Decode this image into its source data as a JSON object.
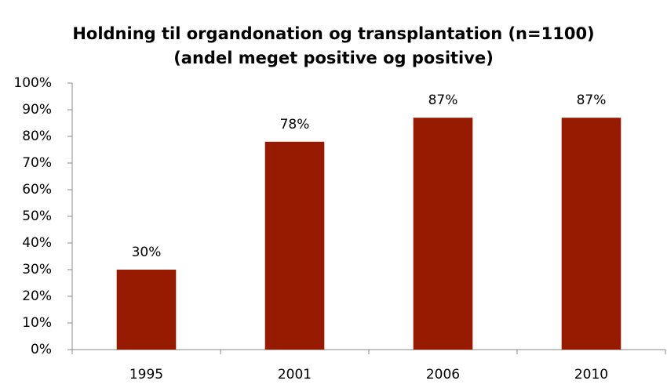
{
  "chart_data": {
    "type": "bar",
    "title": "Holdning til organdonation og transplantation (n=1100)",
    "subtitle": "(andel meget positive og positive)",
    "categories": [
      "1995",
      "2001",
      "2006",
      "2010"
    ],
    "values": [
      30,
      78,
      87,
      87
    ],
    "value_labels": [
      "30%",
      "78%",
      "87%",
      "87%"
    ],
    "color": "#951a00",
    "ylim": [
      0,
      100
    ],
    "yticks": [
      {
        "value": 0,
        "label": "0%"
      },
      {
        "value": 10,
        "label": "10%"
      },
      {
        "value": 20,
        "label": "20%"
      },
      {
        "value": 30,
        "label": "30%"
      },
      {
        "value": 40,
        "label": "40%"
      },
      {
        "value": 50,
        "label": "50%"
      },
      {
        "value": 60,
        "label": "60%"
      },
      {
        "value": 70,
        "label": "70%"
      },
      {
        "value": 80,
        "label": "80%"
      },
      {
        "value": 90,
        "label": "90%"
      },
      {
        "value": 100,
        "label": "100%"
      }
    ],
    "grid": false
  }
}
